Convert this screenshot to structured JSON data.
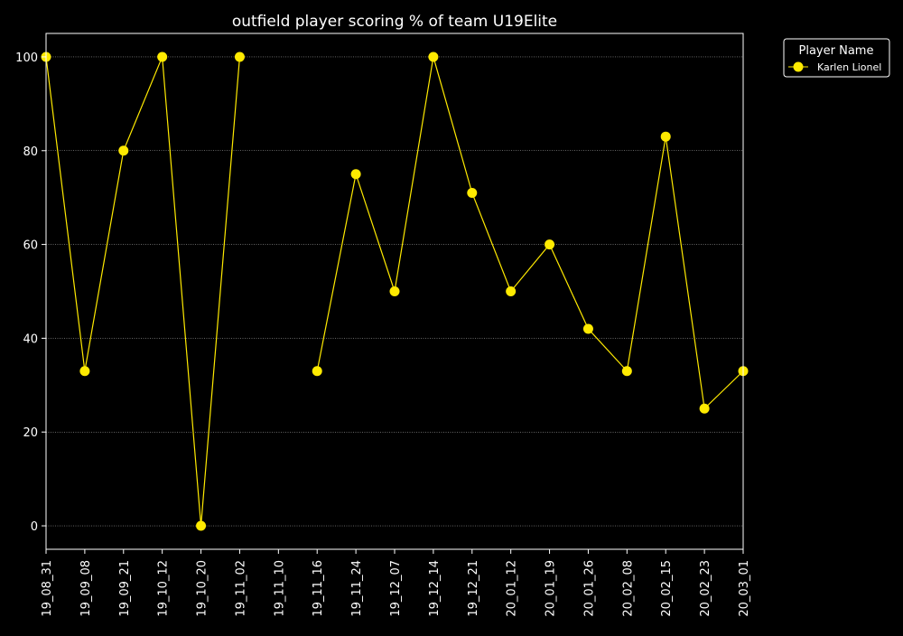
{
  "chart_data": {
    "type": "line",
    "title": "outfield player scoring % of team U19Elite",
    "xlabel": "",
    "ylabel": "",
    "categories": [
      "19_08_31",
      "19_09_08",
      "19_09_21",
      "19_10_12",
      "19_10_20",
      "19_11_02",
      "19_11_10",
      "19_11_16",
      "19_11_24",
      "19_12_07",
      "19_12_14",
      "19_12_21",
      "20_01_12",
      "20_01_19",
      "20_01_26",
      "20_02_08",
      "20_02_15",
      "20_02_23",
      "20_03_01"
    ],
    "series": [
      {
        "name": "Karlen Lionel",
        "values": [
          100,
          33,
          80,
          100,
          0,
          100,
          null,
          33,
          75,
          50,
          100,
          71,
          50,
          60,
          42,
          33,
          83,
          25,
          33
        ]
      }
    ],
    "yticks": [
      0,
      20,
      40,
      60,
      80,
      100
    ],
    "ylim": [
      -5,
      105
    ],
    "grid": "horizontal dotted",
    "legend": {
      "title": "Player Name",
      "position": "upper-right, outside plot"
    },
    "colors": {
      "background": "#000000",
      "line": "#ffea00",
      "marker": "#ffea00",
      "axes": "#ffffff",
      "grid": "#ffffff"
    }
  }
}
